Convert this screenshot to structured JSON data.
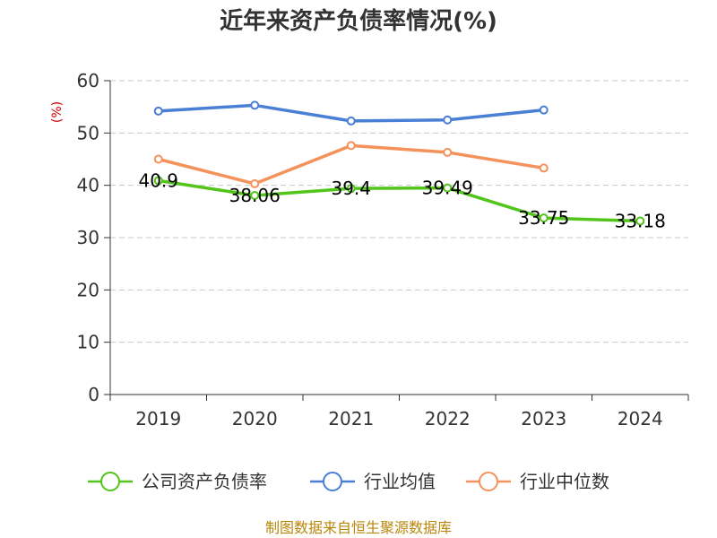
{
  "chart_data": {
    "type": "line",
    "title": "近年来资产负债率情况(%)",
    "ylabel": "(%)",
    "categories": [
      "2019",
      "2020",
      "2021",
      "2022",
      "2023",
      "2024"
    ],
    "ylim": [
      0,
      60
    ],
    "yticks": [
      0,
      10,
      20,
      30,
      40,
      50,
      60
    ],
    "grid": true,
    "legend_position": "bottom",
    "series": [
      {
        "name": "公司资产负债率",
        "color": "#52c41a",
        "values": [
          40.9,
          38.06,
          39.4,
          39.49,
          33.75,
          33.18
        ],
        "labels": [
          "40.9",
          "38.06",
          "39.4",
          "39.49",
          "33.75",
          "33.18"
        ],
        "show_labels": true
      },
      {
        "name": "行业均值",
        "color": "#4a7fd6",
        "values": [
          54.2,
          55.3,
          52.3,
          52.5,
          54.4,
          null
        ],
        "show_labels": false
      },
      {
        "name": "行业中位数",
        "color": "#f5915a",
        "values": [
          45.0,
          40.3,
          47.6,
          46.3,
          43.3,
          null
        ],
        "show_labels": false
      }
    ]
  },
  "source": "制图数据来自恒生聚源数据库"
}
